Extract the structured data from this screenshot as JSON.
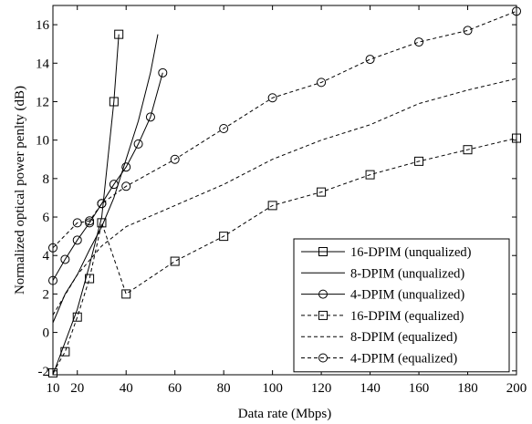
{
  "chart_data": {
    "type": "line",
    "title": "",
    "xlabel": "Data rate (Mbps)",
    "ylabel": "Normalized optical power penlty (dB)",
    "xlim": [
      10,
      200
    ],
    "ylim": [
      -2.2,
      17
    ],
    "xticks": [
      10,
      20,
      40,
      60,
      80,
      100,
      120,
      140,
      160,
      180,
      200
    ],
    "yticks": [
      -2,
      0,
      2,
      4,
      6,
      8,
      10,
      12,
      14,
      16
    ],
    "grid": false,
    "legend_position": "lower-right",
    "series": [
      {
        "name": "16-DPIM (unqualized)",
        "line": "solid",
        "marker": "square",
        "color": "#000000",
        "x": [
          10,
          15,
          20,
          25,
          30,
          35,
          37
        ],
        "y": [
          -2.2,
          -0.5,
          1.2,
          3.5,
          6.0,
          12.0,
          15.5
        ],
        "marker_x": [
          35,
          37
        ],
        "marker_y": [
          12.0,
          15.5
        ]
      },
      {
        "name": "8-DPIM (unqualized)",
        "line": "solid",
        "marker": "none",
        "color": "#000000",
        "x": [
          10,
          15,
          20,
          25,
          30,
          35,
          40,
          45,
          50,
          53
        ],
        "y": [
          0.5,
          2.0,
          3.0,
          4.3,
          5.5,
          7.0,
          9.0,
          11.0,
          13.5,
          15.5
        ]
      },
      {
        "name": "4-DPIM (unqualized)",
        "line": "solid",
        "marker": "circle",
        "color": "#000000",
        "x": [
          10,
          15,
          20,
          25,
          30,
          35,
          40,
          45,
          50,
          55
        ],
        "y": [
          2.7,
          3.8,
          4.8,
          5.7,
          6.7,
          7.7,
          8.6,
          9.8,
          11.2,
          13.5
        ]
      },
      {
        "name": "16-DPIM (equalized)",
        "line": "dashed",
        "marker": "square",
        "color": "#000000",
        "x": [
          10,
          15,
          20,
          25,
          30,
          40,
          60,
          80,
          100,
          120,
          140,
          160,
          180,
          200
        ],
        "y": [
          -2.1,
          -1.0,
          0.8,
          2.8,
          5.7,
          2.0,
          3.7,
          5.0,
          6.6,
          7.3,
          8.2,
          8.9,
          9.5,
          10.1
        ]
      },
      {
        "name": "8-DPIM (equalized)",
        "line": "dashed",
        "marker": "none",
        "color": "#000000",
        "x": [
          10,
          20,
          30,
          40,
          60,
          80,
          100,
          120,
          140,
          160,
          180,
          200
        ],
        "y": [
          0.9,
          3.0,
          4.5,
          5.5,
          6.6,
          7.7,
          9.0,
          10.0,
          10.8,
          11.9,
          12.6,
          13.2
        ]
      },
      {
        "name": "4-DPIM (equalized)",
        "line": "dashed",
        "marker": "circle",
        "color": "#000000",
        "x": [
          10,
          20,
          25,
          30,
          40,
          60,
          80,
          100,
          120,
          140,
          160,
          180,
          200
        ],
        "y": [
          4.4,
          5.7,
          5.8,
          6.7,
          7.6,
          9.0,
          10.6,
          12.2,
          13.0,
          14.2,
          15.1,
          15.7,
          16.7
        ]
      }
    ]
  }
}
